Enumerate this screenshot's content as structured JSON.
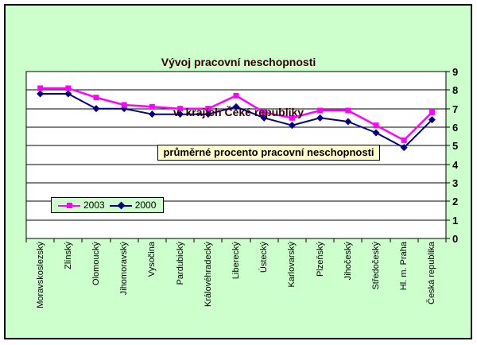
{
  "chart": {
    "title_lines": [
      "Vývoj pracovní neschopnosti",
      "v  krajích Čeké republiky"
    ],
    "title_color": "#330000",
    "background_color": "#ccffcc",
    "plot_background_color": "#ffffff",
    "annotation_bg": "#ffffcc",
    "gridline_color": "#000000"
  },
  "chart_data": {
    "type": "line",
    "title": "Vývoj pracovní neschopnosti v  krajích Čeké republiky",
    "annotation": "průměrné procento pracovní neschopnosti",
    "categories": [
      "Moravskoslezský",
      "Zlínský",
      "Olomoucký",
      "Jihomoravský",
      "Vysočina",
      "Pardubický",
      "Královéhradecký",
      "Liberecký",
      "Ústecký",
      "Karlovarský",
      "Plzeňský",
      "Jihočeský",
      "Středočeský",
      "Hl. m. Praha",
      "Česká republika"
    ],
    "series": [
      {
        "name": "2003",
        "color": "#ff00ff",
        "marker": "square",
        "values": [
          8.1,
          8.1,
          7.6,
          7.2,
          7.1,
          7.0,
          7.0,
          7.7,
          6.8,
          6.5,
          6.9,
          6.9,
          6.1,
          5.3,
          6.8
        ]
      },
      {
        "name": "2000",
        "color": "#000080",
        "marker": "diamond",
        "values": [
          7.8,
          7.8,
          7.0,
          7.0,
          6.7,
          6.7,
          6.7,
          7.1,
          6.5,
          6.1,
          6.5,
          6.3,
          5.7,
          4.9,
          6.4
        ]
      }
    ],
    "xlabel": "",
    "ylabel": "",
    "ylim": [
      0,
      9
    ],
    "yticks": [
      0,
      1,
      2,
      3,
      4,
      5,
      6,
      7,
      8,
      9
    ],
    "grid": true,
    "legend_position": "inside-bottom-left"
  }
}
